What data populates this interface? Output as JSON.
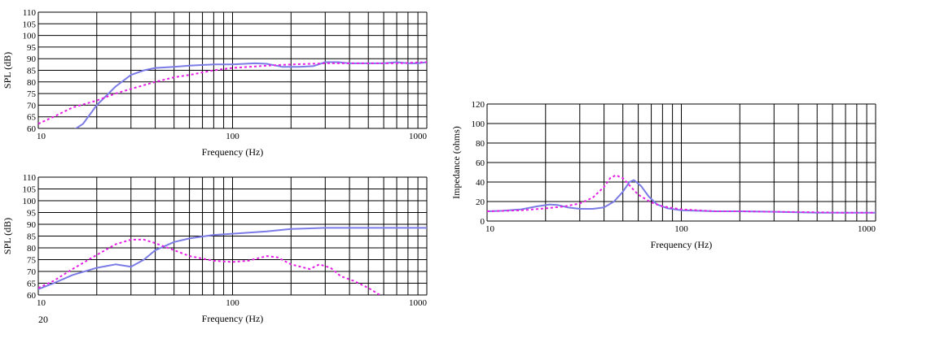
{
  "colors": {
    "series_solid": "#7b7be6",
    "series_dotted": "#e61ee6",
    "grid": "#000000",
    "background": "#ffffff"
  },
  "footnote": "20",
  "chart_data": [
    {
      "type": "line",
      "xscale": "log",
      "xlim": [
        10,
        1000
      ],
      "ylim": [
        60,
        110
      ],
      "xlabel": "Frequency (Hz)",
      "ylabel": "SPL (dB)",
      "xtick_labels": [
        "10",
        "100",
        "1000"
      ],
      "ytick_labels": [
        "60",
        "65",
        "70",
        "75",
        "80",
        "85",
        "90",
        "95",
        "100",
        "105",
        "110"
      ],
      "grid": true,
      "series": [
        {
          "style": "solid",
          "color": "#7b7be6",
          "points": [
            [
              15,
              59
            ],
            [
              17,
              62
            ],
            [
              20,
              70
            ],
            [
              25,
              78
            ],
            [
              30,
              83
            ],
            [
              35,
              85
            ],
            [
              40,
              86
            ],
            [
              50,
              86.5
            ],
            [
              60,
              87
            ],
            [
              80,
              87.5
            ],
            [
              100,
              87.5
            ],
            [
              130,
              88
            ],
            [
              150,
              87.8
            ],
            [
              180,
              86.5
            ],
            [
              220,
              86.5
            ],
            [
              260,
              86.8
            ],
            [
              300,
              88.5
            ],
            [
              350,
              88.5
            ],
            [
              400,
              88
            ],
            [
              500,
              88
            ],
            [
              600,
              88
            ],
            [
              700,
              88.5
            ],
            [
              800,
              88
            ],
            [
              900,
              88
            ],
            [
              1000,
              88.5
            ]
          ]
        },
        {
          "style": "dotted",
          "color": "#e61ee6",
          "points": [
            [
              10,
              62
            ],
            [
              12,
              65
            ],
            [
              15,
              69
            ],
            [
              20,
              72
            ],
            [
              25,
              75
            ],
            [
              30,
              77
            ],
            [
              40,
              80
            ],
            [
              50,
              82
            ],
            [
              60,
              83
            ],
            [
              80,
              85
            ],
            [
              100,
              86
            ],
            [
              150,
              87
            ],
            [
              200,
              87.5
            ],
            [
              300,
              88
            ],
            [
              400,
              88
            ],
            [
              500,
              88
            ],
            [
              700,
              88
            ],
            [
              1000,
              88.5
            ]
          ]
        }
      ]
    },
    {
      "type": "line",
      "xscale": "log",
      "xlim": [
        10,
        1000
      ],
      "ylim": [
        60,
        110
      ],
      "xlabel": "Frequency (Hz)",
      "ylabel": "SPL (dB)",
      "xtick_labels": [
        "10",
        "100",
        "1000"
      ],
      "ytick_labels": [
        "60",
        "65",
        "70",
        "75",
        "80",
        "85",
        "90",
        "95",
        "100",
        "105",
        "110"
      ],
      "grid": true,
      "series": [
        {
          "style": "solid",
          "color": "#7b7be6",
          "points": [
            [
              10,
              62.5
            ],
            [
              12,
              65
            ],
            [
              15,
              68.5
            ],
            [
              20,
              71.5
            ],
            [
              25,
              73
            ],
            [
              30,
              72
            ],
            [
              35,
              75
            ],
            [
              40,
              79
            ],
            [
              50,
              82.5
            ],
            [
              60,
              84
            ],
            [
              80,
              85.5
            ],
            [
              100,
              86
            ],
            [
              150,
              87
            ],
            [
              200,
              88
            ],
            [
              300,
              88.5
            ],
            [
              500,
              88.5
            ],
            [
              700,
              88.5
            ],
            [
              1000,
              88.5
            ]
          ]
        },
        {
          "style": "dotted",
          "color": "#e61ee6",
          "points": [
            [
              10,
              63
            ],
            [
              12,
              66
            ],
            [
              15,
              71
            ],
            [
              20,
              77
            ],
            [
              25,
              81.5
            ],
            [
              30,
              83.5
            ],
            [
              35,
              83.5
            ],
            [
              40,
              82
            ],
            [
              50,
              79
            ],
            [
              60,
              76.5
            ],
            [
              80,
              74.5
            ],
            [
              100,
              74
            ],
            [
              120,
              74.5
            ],
            [
              150,
              76.5
            ],
            [
              170,
              76
            ],
            [
              200,
              73
            ],
            [
              250,
              71
            ],
            [
              280,
              73
            ],
            [
              320,
              71.5
            ],
            [
              360,
              68
            ],
            [
              420,
              66
            ],
            [
              500,
              63
            ],
            [
              600,
              59
            ]
          ]
        }
      ]
    },
    {
      "type": "line",
      "xscale": "log",
      "xlim": [
        10,
        1000
      ],
      "ylim": [
        0,
        120
      ],
      "xlabel": "Frequency (Hz)",
      "ylabel": "Impedance (ohms)",
      "xtick_labels": [
        "10",
        "100",
        "1000"
      ],
      "ytick_labels": [
        "0",
        "20",
        "40",
        "60",
        "80",
        "100",
        "120"
      ],
      "grid": true,
      "series": [
        {
          "style": "solid",
          "color": "#7b7be6",
          "points": [
            [
              10,
              10
            ],
            [
              12,
              10.5
            ],
            [
              15,
              12
            ],
            [
              18,
              15
            ],
            [
              21,
              17
            ],
            [
              23,
              16.5
            ],
            [
              26,
              14
            ],
            [
              30,
              12.5
            ],
            [
              35,
              12.5
            ],
            [
              40,
              14
            ],
            [
              45,
              20
            ],
            [
              50,
              30
            ],
            [
              54,
              40
            ],
            [
              57,
              42
            ],
            [
              62,
              36
            ],
            [
              68,
              25
            ],
            [
              75,
              17
            ],
            [
              85,
              13
            ],
            [
              100,
              11
            ],
            [
              150,
              10
            ],
            [
              200,
              10
            ],
            [
              300,
              9.5
            ],
            [
              500,
              8.5
            ],
            [
              700,
              8.5
            ],
            [
              1000,
              8.5
            ]
          ]
        },
        {
          "style": "dotted",
          "color": "#e61ee6",
          "points": [
            [
              10,
              10
            ],
            [
              15,
              11
            ],
            [
              20,
              13
            ],
            [
              25,
              15
            ],
            [
              30,
              18
            ],
            [
              35,
              24
            ],
            [
              40,
              35
            ],
            [
              43,
              44
            ],
            [
              46,
              47
            ],
            [
              50,
              44
            ],
            [
              55,
              35
            ],
            [
              60,
              27
            ],
            [
              70,
              19
            ],
            [
              80,
              15
            ],
            [
              100,
              12
            ],
            [
              150,
              10
            ],
            [
              200,
              10
            ],
            [
              300,
              9.5
            ],
            [
              500,
              9
            ],
            [
              700,
              8.5
            ],
            [
              1000,
              8.5
            ]
          ]
        }
      ]
    }
  ]
}
